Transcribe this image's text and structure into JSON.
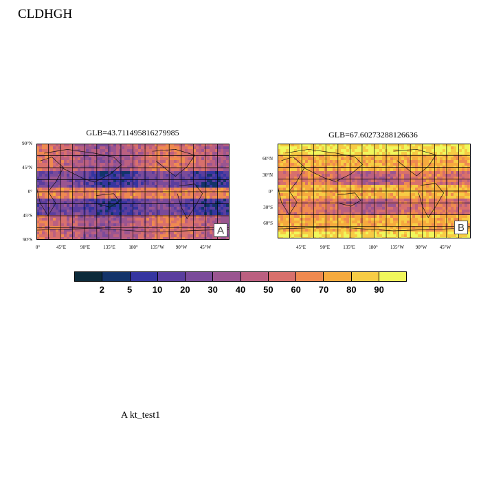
{
  "page_title": "CLDHGH",
  "panels": [
    {
      "title": "GLB=43.711495816279985",
      "badge": "A",
      "lat_ticks": [
        "90°N",
        "45°N",
        "0°",
        "45°S",
        "90°S"
      ],
      "lon_ticks": [
        "0°",
        "45°E",
        "90°E",
        "135°E",
        "180°",
        "135°W",
        "90°W",
        "45°W"
      ]
    },
    {
      "title": "GLB=67.60273288126636",
      "badge": "B",
      "lat_ticks": [
        "60°N",
        "30°N",
        "0°",
        "30°S",
        "60°S"
      ],
      "lon_ticks": [
        "45°E",
        "90°E",
        "135°E",
        "180°",
        "135°W",
        "90°W",
        "45°W"
      ]
    }
  ],
  "colorbar": {
    "labels": [
      "2",
      "5",
      "10",
      "20",
      "30",
      "40",
      "50",
      "60",
      "70",
      "80",
      "90"
    ],
    "colors": [
      "#0c2a3a",
      "#13346a",
      "#3535a0",
      "#5a3e9e",
      "#7a4b9a",
      "#9a5590",
      "#bb6080",
      "#d8706c",
      "#ef8a50",
      "#f6aa3e",
      "#f7cc45",
      "#f0f75c"
    ]
  },
  "footer": "A  kt_test1"
}
